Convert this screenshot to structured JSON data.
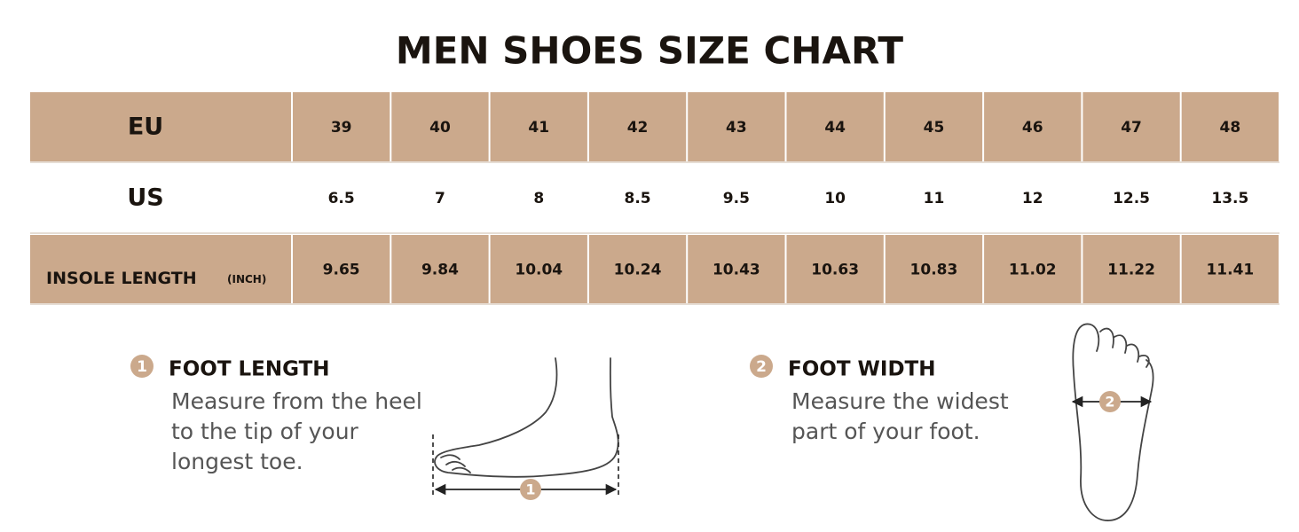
{
  "title": "MEN SHOES SIZE CHART",
  "table": {
    "rows": [
      {
        "label": "EU",
        "cells": [
          39,
          40,
          41,
          42,
          43,
          44,
          45,
          46,
          47,
          48
        ]
      },
      {
        "label": "US",
        "cells": [
          6.5,
          7,
          8,
          8.5,
          9.5,
          10,
          11,
          12,
          12.5,
          13.5
        ]
      },
      {
        "label": "INSOLE LENGTH",
        "unit": "(INCH)",
        "cells": [
          9.65,
          9.84,
          10.04,
          10.24,
          10.43,
          10.63,
          10.83,
          11.02,
          11.22,
          11.41
        ]
      }
    ]
  },
  "steps": [
    {
      "number": "1",
      "heading": "FOOT LENGTH",
      "lines": [
        "Measure from the heel",
        "to the tip of your",
        "longest toe."
      ]
    },
    {
      "number": "2",
      "heading": "FOOT WIDTH",
      "lines": [
        "Measure the widest",
        "part of your foot."
      ]
    }
  ]
}
